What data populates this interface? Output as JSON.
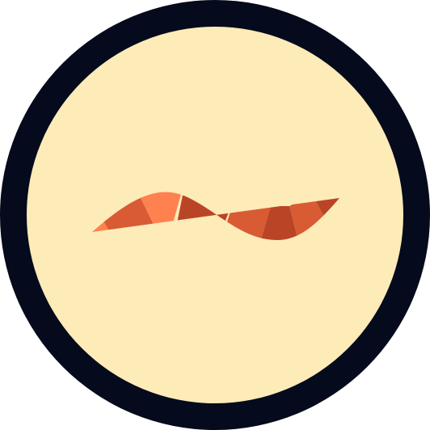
{
  "icon": {
    "name": "worm-icon",
    "colors": {
      "border": "#050a1c",
      "background": "#fdebb8",
      "light": "#ff8150",
      "mid": "#d85b34",
      "dark": "#b94526"
    }
  }
}
